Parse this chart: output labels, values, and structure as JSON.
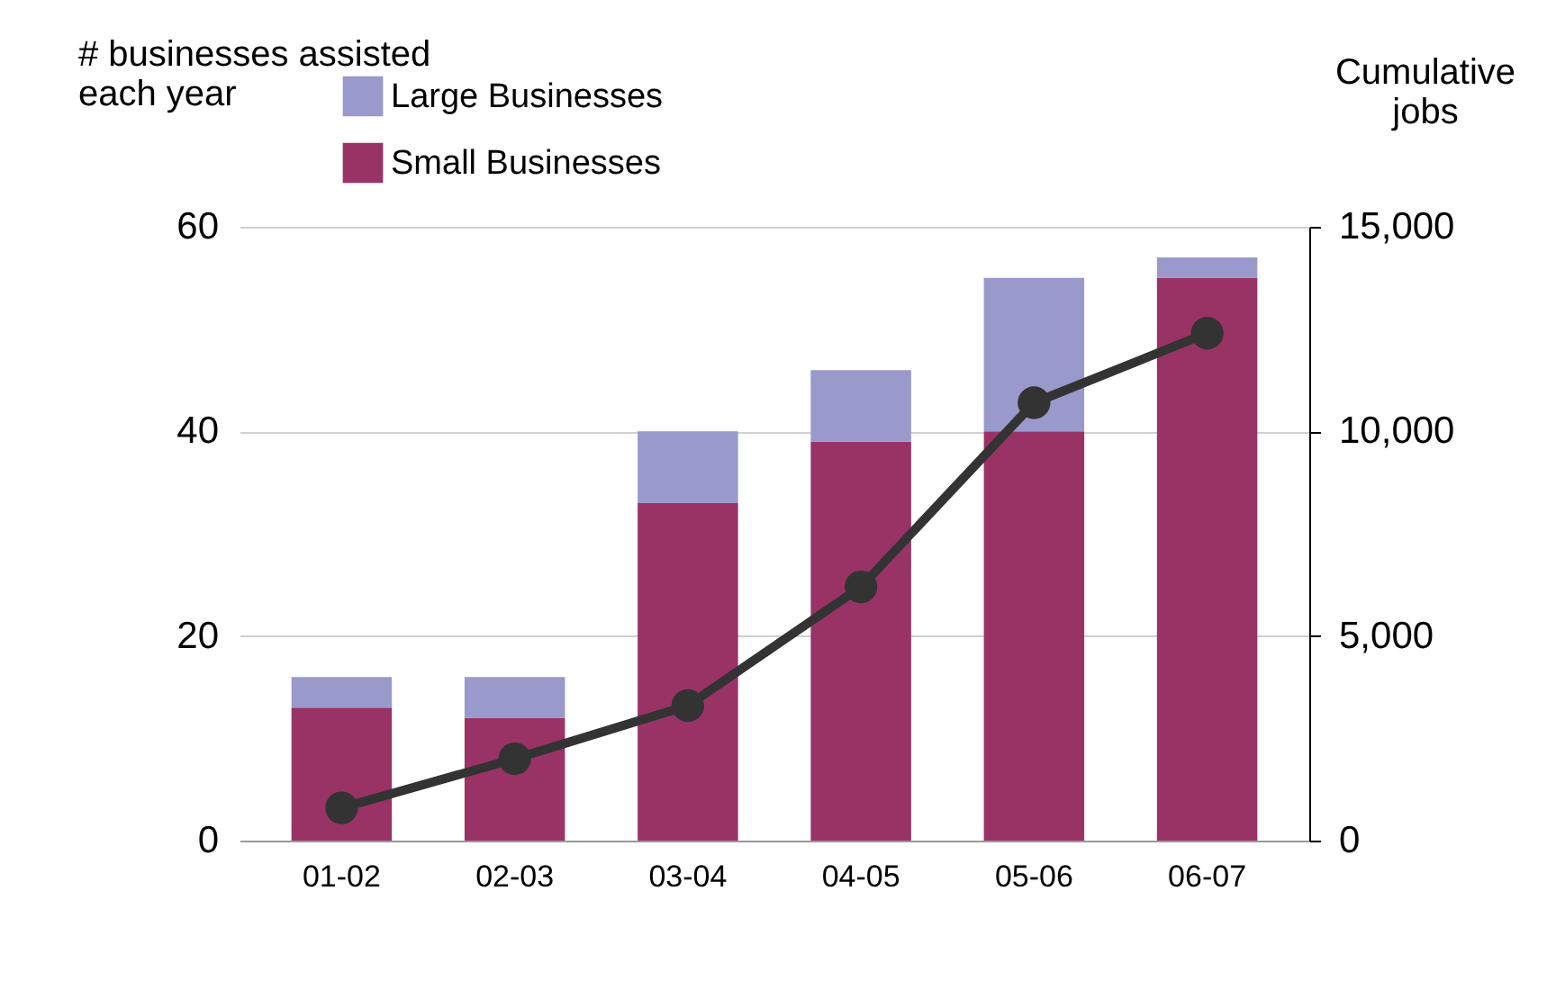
{
  "chart_data": {
    "type": "bar",
    "stacked": true,
    "ylabel": "# businesses assisted\neach year",
    "y2label": "Cumulative\njobs",
    "categories": [
      "01-02",
      "02-03",
      "03-04",
      "04-05",
      "05-06",
      "06-07"
    ],
    "series": [
      {
        "name": "Small Businesses",
        "color": "#993366",
        "values": [
          13,
          12,
          33,
          39,
          40,
          55
        ]
      },
      {
        "name": "Large Businesses",
        "color": "#9999cc",
        "values": [
          3,
          4,
          7,
          7,
          15,
          2
        ]
      },
      {
        "type": "line",
        "axis": "y2",
        "color": "#333333",
        "marker": "circle",
        "values": [
          800,
          2000,
          3300,
          6200,
          10700,
          12400
        ]
      }
    ],
    "ylim": [
      0,
      60
    ],
    "yticks": [
      0,
      20,
      40,
      60
    ],
    "y2lim": [
      0,
      15000
    ],
    "y2ticks": [
      {
        "value": 0,
        "label": "0"
      },
      {
        "value": 5000,
        "label": "5,000"
      },
      {
        "value": 10000,
        "label": "10,000"
      },
      {
        "value": 15000,
        "label": "15,000"
      }
    ],
    "grid": "y",
    "legend": "top"
  }
}
